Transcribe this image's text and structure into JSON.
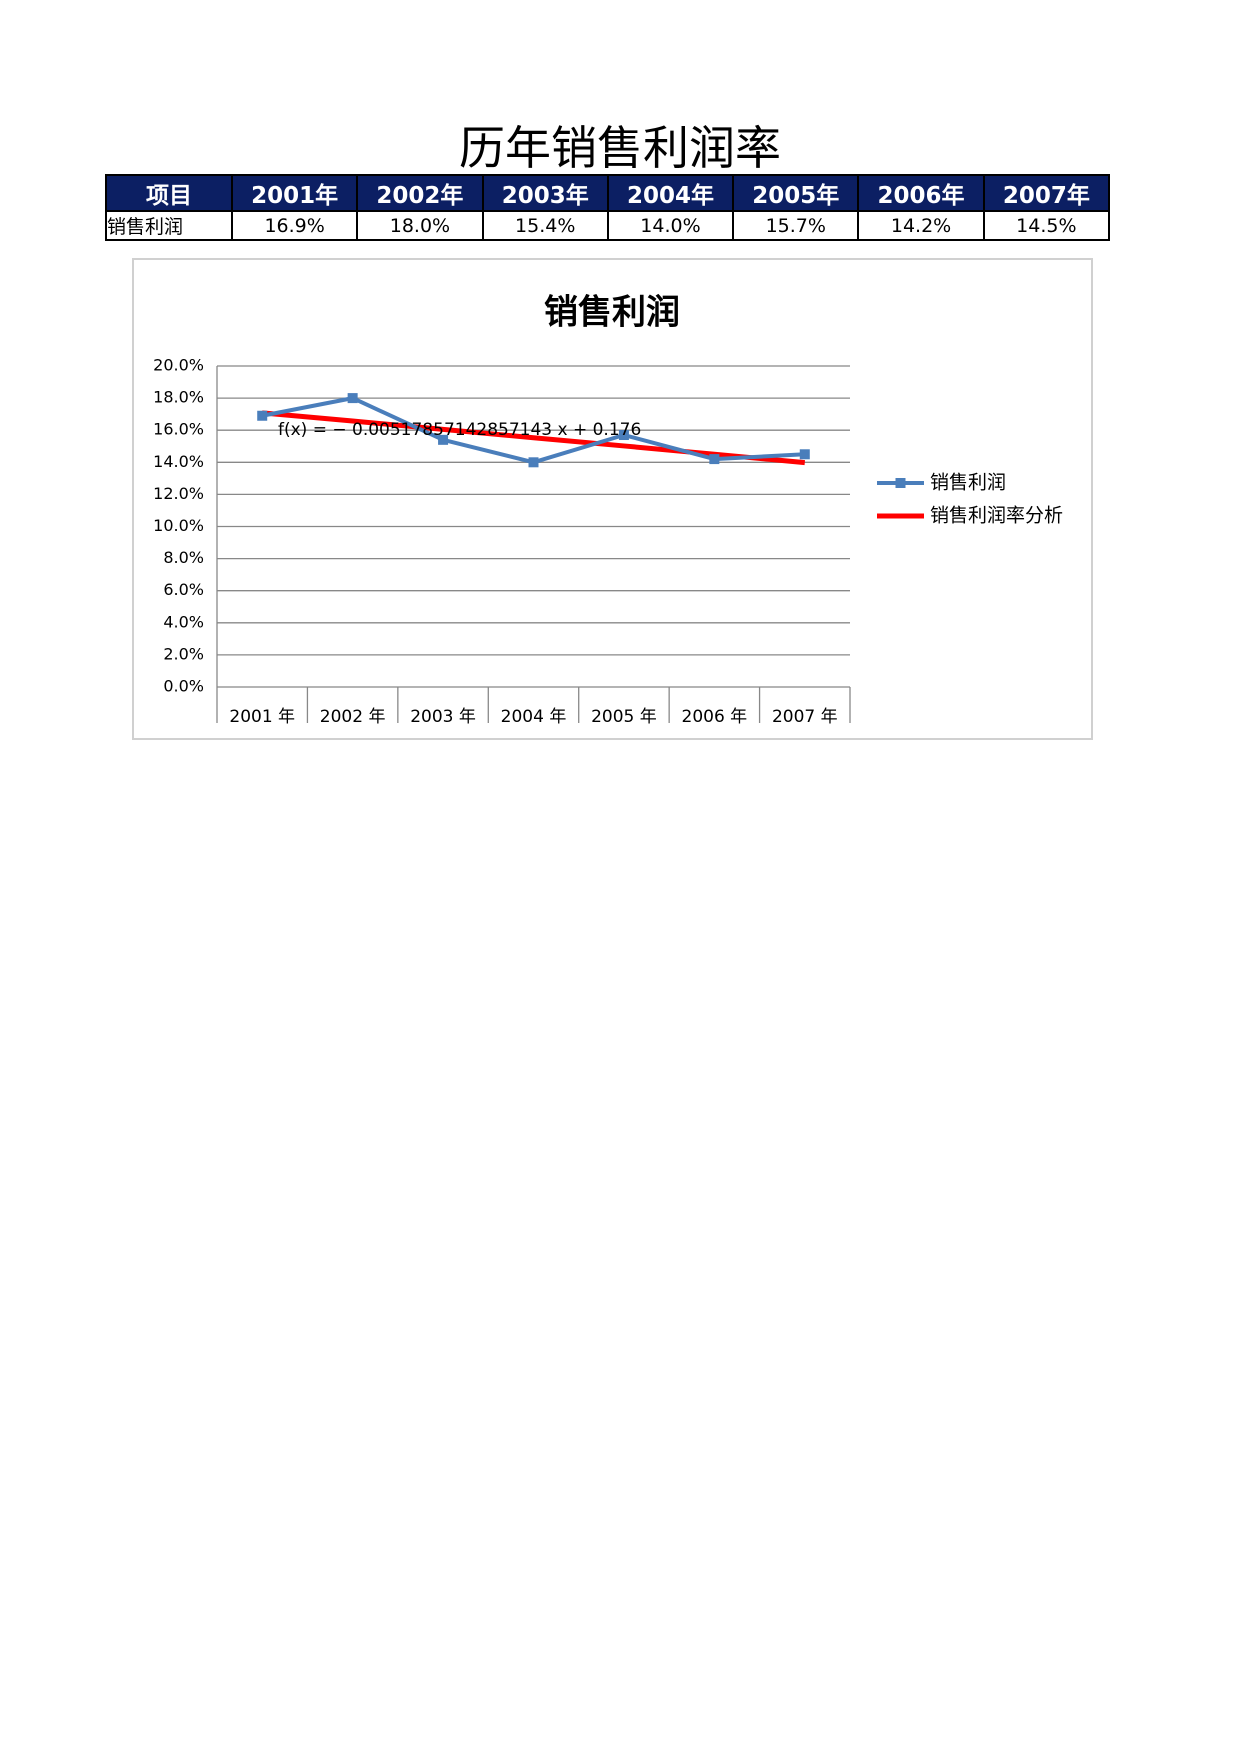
{
  "title": "历年销售利润率",
  "table": {
    "header": [
      "项目",
      "2001年",
      "2002年",
      "2003年",
      "2004年",
      "2005年",
      "2006年",
      "2007年"
    ],
    "rows": [
      [
        "销售利润",
        "16.9%",
        "18.0%",
        "15.4%",
        "14.0%",
        "15.7%",
        "14.2%",
        "14.5%"
      ]
    ]
  },
  "chart_data": {
    "type": "line",
    "title": "销售利润",
    "categories": [
      "2001 年",
      "2002 年",
      "2003 年",
      "2004 年",
      "2005 年",
      "2006 年",
      "2007 年"
    ],
    "series": [
      {
        "name": "销售利润",
        "color": "#4a7ebb",
        "values": [
          16.9,
          18.0,
          15.4,
          14.0,
          15.7,
          14.2,
          14.5
        ],
        "marker": "square"
      },
      {
        "name": "销售利润率分析",
        "color": "#ff0000",
        "values": [
          17.08,
          16.57,
          16.05,
          15.53,
          15.02,
          14.5,
          13.98
        ]
      }
    ],
    "annotation": "f(x) = − 0.00517857142857143 x + 0.176",
    "ylim": [
      0,
      20
    ],
    "yticks": [
      {
        "value": 0,
        "label": "0.0%"
      },
      {
        "value": 2,
        "label": "2.0%"
      },
      {
        "value": 4,
        "label": "4.0%"
      },
      {
        "value": 6,
        "label": "6.0%"
      },
      {
        "value": 8,
        "label": "8.0%"
      },
      {
        "value": 10,
        "label": "10.0%"
      },
      {
        "value": 12,
        "label": "12.0%"
      },
      {
        "value": 14,
        "label": "14.0%"
      },
      {
        "value": 16,
        "label": "16.0%"
      },
      {
        "value": 18,
        "label": "18.0%"
      },
      {
        "value": 20,
        "label": "20.0%"
      }
    ],
    "grid": true,
    "legend": "right"
  }
}
